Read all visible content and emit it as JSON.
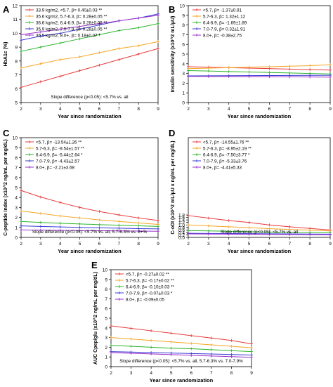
{
  "panel_labels": [
    "A",
    "B",
    "C",
    "D",
    "E"
  ],
  "chart_data": [
    {
      "type": "line",
      "panel": "A",
      "title": "",
      "xlabel": "Year since randomization",
      "ylabel": "HbA1c (%)",
      "x": [
        2,
        3,
        4,
        5,
        6,
        7,
        8,
        9
      ],
      "xlim": [
        2,
        9
      ],
      "ylim": [
        5,
        12
      ],
      "yticks": [
        5,
        6,
        7,
        8,
        9,
        10,
        11,
        12
      ],
      "xticks": [
        2,
        3,
        4,
        5,
        6,
        7,
        8,
        9
      ],
      "legend_position": "top-left",
      "note": "Slope difference (p<0.05): <5.7% vs. all",
      "series": [
        {
          "name": "33.9 kg/m2, <5.7,  β= 0.40±0.03  **",
          "color": "#e83a3a",
          "values": [
            6.1,
            6.5,
            6.9,
            7.3,
            7.7,
            8.1,
            8.5,
            8.9
          ]
        },
        {
          "name": "35.6 kg/m2, 5.7-6.3,  β= 0.28±0.05  **",
          "color": "#f5a623",
          "values": [
            7.5,
            7.8,
            8.1,
            8.3,
            8.6,
            8.9,
            9.1,
            9.4
          ]
        },
        {
          "name": "36.6 kg/m2, 6.4-6.9,  β= 0.28±0.05  **",
          "color": "#2db52d",
          "values": [
            8.7,
            9.0,
            9.3,
            9.6,
            9.9,
            10.2,
            10.4,
            10.7
          ]
        },
        {
          "name": "35.9 kg/m2, 7.0-7.9,  β= 0.28±0.05  **",
          "color": "#3b3bd6",
          "values": [
            9.5,
            9.8,
            10.0,
            10.3,
            10.6,
            10.9,
            11.1,
            11.4
          ]
        },
        {
          "name": "36.5 kg/m2, 8.0+,  β= 0.18±0.07  *",
          "color": "#9b30c9",
          "values": [
            9.9,
            10.1,
            10.3,
            10.5,
            10.7,
            10.9,
            11.1,
            11.3
          ]
        }
      ]
    },
    {
      "type": "line",
      "panel": "B",
      "title": "",
      "xlabel": "Year since randomization",
      "ylabel": "Insulin sensitivity (x10^2 mL/μU)",
      "x": [
        2,
        3,
        4,
        5,
        6,
        7,
        8,
        9
      ],
      "xlim": [
        2,
        9
      ],
      "ylim": [
        0,
        10
      ],
      "yticks": [
        0,
        1,
        2,
        3,
        4,
        5,
        6,
        7,
        8,
        9,
        10
      ],
      "xticks": [
        2,
        3,
        4,
        5,
        6,
        7,
        8,
        9
      ],
      "legend_position": "top-left",
      "note": "",
      "series": [
        {
          "name": "<5.7,  β= -1.37±0.91",
          "color": "#e83a3a",
          "values": [
            3.7,
            3.65,
            3.6,
            3.55,
            3.5,
            3.45,
            3.4,
            3.35
          ]
        },
        {
          "name": "5.7-6.3,  β= 1.32±1.12",
          "color": "#f5a623",
          "values": [
            3.5,
            3.55,
            3.6,
            3.65,
            3.7,
            3.75,
            3.8,
            3.9
          ]
        },
        {
          "name": "6.4-6.9,  β= -1.69±1.89",
          "color": "#2db52d",
          "values": [
            3.3,
            3.25,
            3.2,
            3.15,
            3.1,
            3.05,
            3.0,
            2.95
          ]
        },
        {
          "name": "7.0-7.9,  β= 0.32±1.91",
          "color": "#3b3bd6",
          "values": [
            2.75,
            2.76,
            2.77,
            2.78,
            2.79,
            2.8,
            2.81,
            2.82
          ]
        },
        {
          "name": "8.0+,  β= -0.38±2.75",
          "color": "#9b30c9",
          "values": [
            2.7,
            2.69,
            2.68,
            2.67,
            2.66,
            2.65,
            2.64,
            2.63
          ]
        }
      ]
    },
    {
      "type": "line",
      "panel": "C",
      "title": "",
      "xlabel": "Year since randomization",
      "ylabel": "C-peptide index (x10^2 ng/mL per mg/dL)",
      "x": [
        2,
        3,
        4,
        5,
        6,
        7,
        8,
        9
      ],
      "xlim": [
        2,
        9
      ],
      "ylim": [
        0,
        10
      ],
      "yticks": [
        0,
        1,
        2,
        3,
        4,
        5,
        6,
        7,
        8,
        9,
        10
      ],
      "xticks": [
        2,
        3,
        4,
        5,
        6,
        7,
        8,
        9
      ],
      "legend_position": "top-left",
      "note": "Slope difference (p<0.05): <5.7% vs. all, 5.7-6.3% vs. 8+%",
      "series": [
        {
          "name": "<5.7,  β= -13.54±1.26 **",
          "color": "#e83a3a",
          "values": [
            4.7,
            4.05,
            3.5,
            3.0,
            2.6,
            2.25,
            1.95,
            1.7
          ]
        },
        {
          "name": "5.7-6.3,  β= -9.54±1.57  **",
          "color": "#f5a623",
          "values": [
            2.65,
            2.4,
            2.15,
            1.95,
            1.75,
            1.6,
            1.45,
            1.3
          ]
        },
        {
          "name": "6.4-6.9,  β= -5.44±2.64  *",
          "color": "#2db52d",
          "values": [
            1.6,
            1.5,
            1.42,
            1.35,
            1.28,
            1.22,
            1.16,
            1.1
          ]
        },
        {
          "name": "7.0-7.9,  β= -4.43±2.57",
          "color": "#3b3bd6",
          "values": [
            1.15,
            1.1,
            1.05,
            1.0,
            0.96,
            0.92,
            0.88,
            0.85
          ]
        },
        {
          "name": "8.0+,  β= -2.21±3.68",
          "color": "#9b30c9",
          "values": [
            0.75,
            0.73,
            0.71,
            0.69,
            0.67,
            0.65,
            0.63,
            0.62
          ]
        }
      ]
    },
    {
      "type": "line",
      "panel": "D",
      "title": "",
      "xlabel": "Year since randomization",
      "ylabel": "C-oDI (x10^2 mL/μU x ng/mL per mg/dL)",
      "x": [
        2,
        3,
        4,
        5,
        6,
        7,
        8,
        9
      ],
      "xlim": [
        2,
        9
      ],
      "ylim": [
        0,
        0.8
      ],
      "yticks": [
        0,
        0.02,
        0.04,
        0.06,
        0.08,
        0.1,
        0.12,
        0.14,
        0.16,
        0.18
      ],
      "ytick_labels": [
        "0.0",
        "0.2",
        "0.4",
        "0.6",
        "0.8",
        "1.0",
        "1.2",
        "1.4",
        "1.6",
        "1.8"
      ],
      "xticks": [
        2,
        3,
        4,
        5,
        6,
        7,
        8,
        9
      ],
      "legend_position": "top-left",
      "note": "Slope difference (p<0.05): <5.7% vs. all",
      "series": [
        {
          "name": "<5.7,  β= -14.55±1.76 **",
          "color": "#e83a3a",
          "values": [
            0.175,
            0.155,
            0.135,
            0.12,
            0.1,
            0.085,
            0.072,
            0.06
          ]
        },
        {
          "name": "5.7-6.3,  β= -8.95±2.19 **",
          "color": "#f5a623",
          "values": [
            0.1,
            0.092,
            0.085,
            0.078,
            0.07,
            0.064,
            0.058,
            0.052
          ]
        },
        {
          "name": "6.4-6.9,  β= -7.50±3.77  *",
          "color": "#2db52d",
          "values": [
            0.055,
            0.052,
            0.049,
            0.046,
            0.043,
            0.041,
            0.039,
            0.037
          ]
        },
        {
          "name": "7.0-7.9,  β= -5.33±3.76",
          "color": "#3b3bd6",
          "values": [
            0.033,
            0.032,
            0.031,
            0.03,
            0.029,
            0.028,
            0.027,
            0.026
          ]
        },
        {
          "name": "8.0+,  β= -4.41±5.33",
          "color": "#9b30c9",
          "values": [
            0.028,
            0.027,
            0.026,
            0.025,
            0.024,
            0.023,
            0.022,
            0.021
          ]
        }
      ]
    },
    {
      "type": "line",
      "panel": "E",
      "title": "",
      "xlabel": "Year since randomization",
      "ylabel": "AUC Cpep/glu (x10^2 ng/mL per mg/dL)",
      "x": [
        2,
        3,
        4,
        5,
        6,
        7,
        8,
        9
      ],
      "xlim": [
        2,
        9
      ],
      "ylim": [
        0,
        10
      ],
      "yticks": [
        0,
        1,
        2,
        3,
        4,
        5,
        6,
        7,
        8,
        9,
        10
      ],
      "xticks": [
        2,
        3,
        4,
        5,
        6,
        7,
        8,
        9
      ],
      "legend_position": "top-left",
      "note": "Slope difference (p<0.05): <5.7% vs. all, 5.7-6.3% vs. 7.0-7.9%",
      "series": [
        {
          "name": "<5.7,  β= -0.27±0.02  **",
          "color": "#e83a3a",
          "values": [
            4.2,
            3.95,
            3.7,
            3.45,
            3.2,
            2.95,
            2.7,
            2.35
          ]
        },
        {
          "name": "5.7-6.3,  β= -0.17±0.02  **",
          "color": "#f5a623",
          "values": [
            3.0,
            2.85,
            2.7,
            2.55,
            2.4,
            2.25,
            2.1,
            1.95
          ]
        },
        {
          "name": "6.4-6.9,  β= -0.10±0.03  **",
          "color": "#2db52d",
          "values": [
            2.2,
            2.1,
            2.0,
            1.9,
            1.85,
            1.75,
            1.65,
            1.55
          ]
        },
        {
          "name": "7.0-7.9,  β= -0.07±0.03  *",
          "color": "#3b3bd6",
          "values": [
            1.55,
            1.5,
            1.45,
            1.4,
            1.35,
            1.3,
            1.25,
            1.2
          ]
        },
        {
          "name": "8.0+,  β= -0.09±0.05",
          "color": "#9b30c9",
          "values": [
            1.45,
            1.38,
            1.31,
            1.24,
            1.17,
            1.1,
            1.03,
            0.96
          ]
        }
      ]
    }
  ]
}
